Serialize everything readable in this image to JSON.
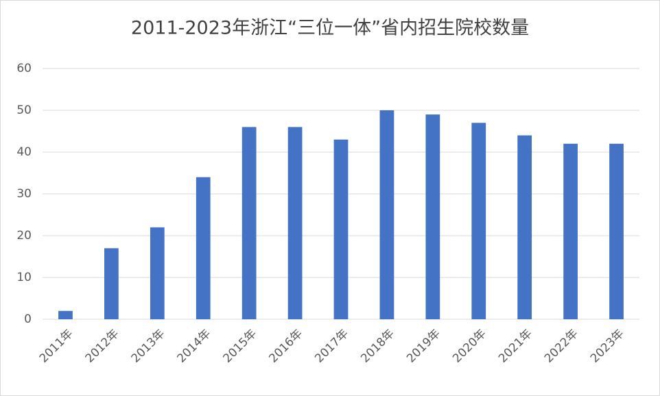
{
  "chart_data": {
    "type": "bar",
    "title": "2011-2023年浙江“三位一体”省内招生院校数量",
    "categories": [
      "2011年",
      "2012年",
      "2013年",
      "2014年",
      "2015年",
      "2016年",
      "2017年",
      "2018年",
      "2019年",
      "2020年",
      "2021年",
      "2022年",
      "2023年"
    ],
    "values": [
      2,
      17,
      22,
      34,
      46,
      46,
      43,
      50,
      49,
      47,
      44,
      42,
      42
    ],
    "color": "#4472c4",
    "ylim": [
      0,
      60
    ],
    "yticks": [
      0,
      10,
      20,
      30,
      40,
      50,
      60
    ],
    "grid": true
  }
}
